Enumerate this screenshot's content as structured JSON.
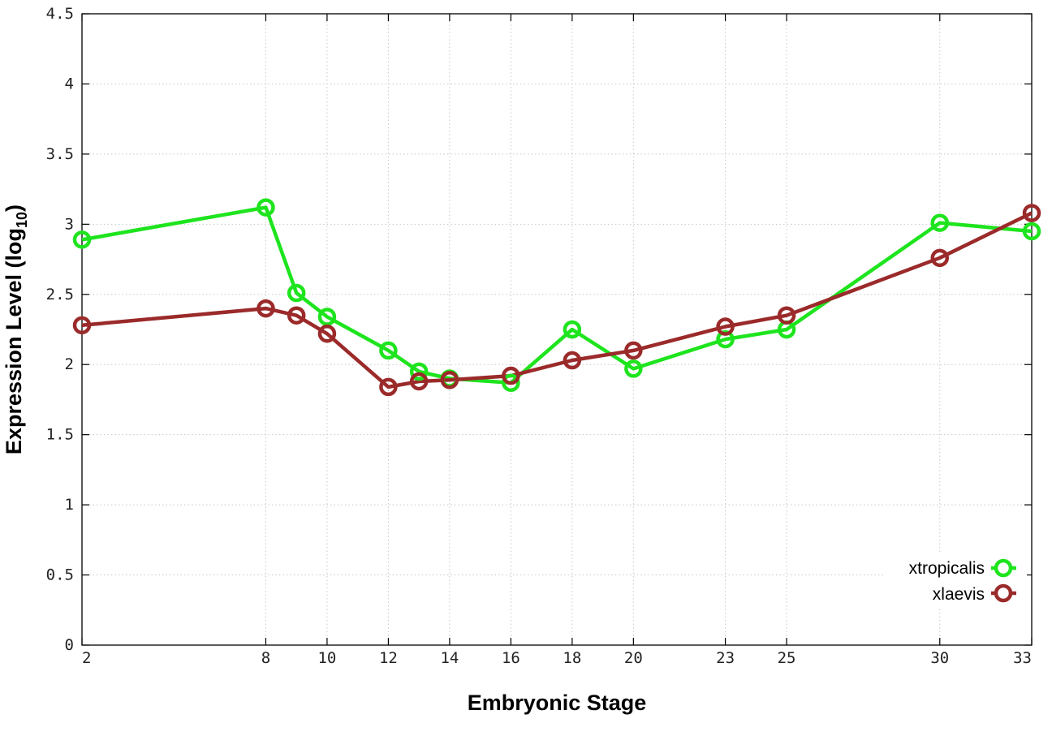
{
  "chart_data": {
    "type": "line",
    "title": "",
    "xlabel": "Embryonic Stage",
    "ylabel_main": "Expression Level (log",
    "ylabel_sub": "10",
    "ylabel_close": ")",
    "x": [
      2,
      8,
      9,
      10,
      12,
      13,
      14,
      16,
      18,
      20,
      23,
      25,
      30,
      33
    ],
    "xticks": [
      "2",
      "8",
      "10",
      "12",
      "14",
      "16",
      "18",
      "20",
      "23",
      "25",
      "30",
      "33"
    ],
    "yticks": [
      "0",
      "0.5",
      "1",
      "1.5",
      "2",
      "2.5",
      "3",
      "3.5",
      "4",
      "4.5"
    ],
    "xlim": [
      2,
      33
    ],
    "ylim": [
      0,
      4.5
    ],
    "grid": true,
    "legend_position": "bottom-right",
    "series": [
      {
        "name": "xtropicalis",
        "color": "#1ee41e",
        "values": [
          2.89,
          3.12,
          2.51,
          2.34,
          2.1,
          1.95,
          1.9,
          1.87,
          2.25,
          1.97,
          2.18,
          2.25,
          3.01,
          2.95
        ]
      },
      {
        "name": "xlaevis",
        "color": "#9b2a2a",
        "values": [
          2.28,
          2.4,
          2.35,
          2.22,
          1.84,
          1.88,
          1.89,
          1.92,
          2.03,
          2.1,
          2.27,
          2.35,
          2.76,
          3.08
        ]
      }
    ]
  }
}
